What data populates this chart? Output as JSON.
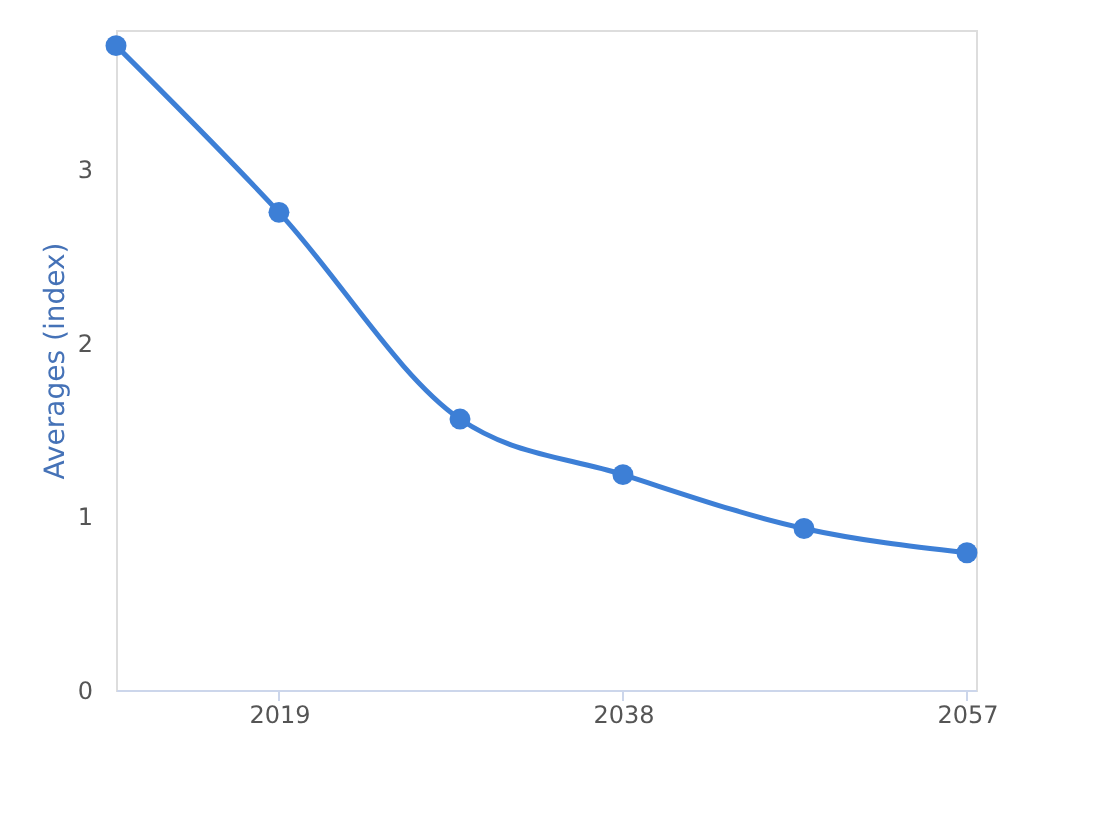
{
  "chart_data": {
    "type": "line",
    "ylabel": "Averages (index)",
    "x": [
      2010,
      2019,
      2029,
      2038,
      2048,
      2057
    ],
    "series": [
      {
        "color": "#3d7fd6",
        "values": [
          3.71,
          2.75,
          1.56,
          1.24,
          0.93,
          0.79
        ]
      }
    ],
    "xlim": [
      2010,
      2057.5
    ],
    "xticks": [
      2019,
      2038,
      2057
    ],
    "ylim": [
      0,
      3.8
    ],
    "yticks": [
      0,
      1,
      2,
      3
    ],
    "grid": false,
    "marker": "circle",
    "line_style": "solid"
  }
}
